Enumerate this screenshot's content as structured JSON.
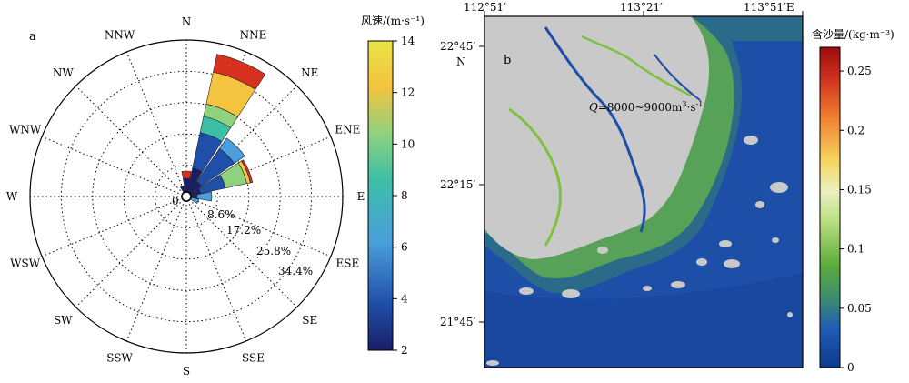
{
  "panel_a": {
    "label": "a",
    "center_label": "0",
    "directions": [
      "N",
      "NNE",
      "NE",
      "ENE",
      "E",
      "ESE",
      "SE",
      "SSE",
      "S",
      "SSW",
      "SW",
      "WSW",
      "W",
      "WNW",
      "NW",
      "NNW"
    ],
    "ring_labels": [
      "8.6%",
      "17.2%",
      "25.8%",
      "34.4%"
    ],
    "colorbar": {
      "title": "风速/(m·s⁻¹)",
      "ticks": [
        "14",
        "12",
        "10",
        "8",
        "6",
        "4",
        "2"
      ],
      "colors": [
        "#1a1e6a",
        "#1f4fa8",
        "#4a9fdc",
        "#3cbfa7",
        "#8fd27d",
        "#f4c340",
        "#e9e347"
      ]
    },
    "chart_data": {
      "type": "windrose",
      "ring_percent": [
        8.6,
        17.2,
        25.8,
        34.4
      ],
      "max_percent": 43.0,
      "speed_range_ms": [
        2,
        14
      ],
      "petals": [
        {
          "direction": "N",
          "segments": [
            {
              "upto_percent": 5.0,
              "color": "#1a1e6a"
            },
            {
              "upto_percent": 7.0,
              "color": "#d7301f"
            }
          ]
        },
        {
          "direction": "NNE",
          "segments": [
            {
              "upto_percent": 8.0,
              "color": "#1a1e6a"
            },
            {
              "upto_percent": 18.0,
              "color": "#1f4fa8"
            },
            {
              "upto_percent": 22.5,
              "color": "#3cbfa7"
            },
            {
              "upto_percent": 26.0,
              "color": "#8fd27d"
            },
            {
              "upto_percent": 35.0,
              "color": "#f4c340"
            },
            {
              "upto_percent": 40.0,
              "color": "#d7301f"
            }
          ]
        },
        {
          "direction": "NE",
          "segments": [
            {
              "upto_percent": 5.0,
              "color": "#1a1e6a"
            },
            {
              "upto_percent": 16.0,
              "color": "#1f4fa8"
            },
            {
              "upto_percent": 19.5,
              "color": "#4a9fdc"
            }
          ]
        },
        {
          "direction": "ENE",
          "segments": [
            {
              "upto_percent": 4.0,
              "color": "#1a1e6a"
            },
            {
              "upto_percent": 11.0,
              "color": "#1f4fa8"
            },
            {
              "upto_percent": 17.0,
              "color": "#8fd27d"
            },
            {
              "upto_percent": 18.0,
              "color": "#f4c340"
            },
            {
              "upto_percent": 18.6,
              "color": "#d7301f"
            }
          ]
        },
        {
          "direction": "E",
          "segments": [
            {
              "upto_percent": 3.0,
              "color": "#1a1e6a"
            },
            {
              "upto_percent": 7.0,
              "color": "#4a9fdc"
            }
          ]
        },
        {
          "direction": "ESE",
          "segments": [
            {
              "upto_percent": 3.5,
              "color": "#4a9fdc"
            }
          ]
        },
        {
          "direction": "NNW",
          "segments": [
            {
              "upto_percent": 3.0,
              "color": "#1a1e6a"
            }
          ]
        }
      ]
    }
  },
  "panel_b": {
    "label": "b",
    "top_ticks": [
      "112°51′",
      "113°21′",
      "113°51′E"
    ],
    "left_ticks": [
      "22°45′\nN",
      "22°15′",
      "21°45′"
    ],
    "left_tick_line1": "22°45′",
    "left_tick_line2": "N",
    "left_tick_mid": "22°15′",
    "left_tick_low": "21°45′",
    "annotation": "Q=8000~9000m³·s⁻¹",
    "annotation_q": "Q",
    "annotation_rest": "=8000~9000m",
    "annotation_sup": "3",
    "annotation_tail": "·s",
    "annotation_sup2": "-1",
    "colorbar": {
      "title": "含沙量/(kg·m⁻³)",
      "ticks": [
        "0.25",
        "0.2",
        "0.15",
        "0.1",
        "0.05",
        "0"
      ],
      "colors": [
        "#0b3b8c",
        "#1f5cb6",
        "#3d8f6b",
        "#8cc63f",
        "#d7e9a3",
        "#f6d35c",
        "#f08030",
        "#c8291c",
        "#9c0d0d"
      ]
    },
    "colors": {
      "sea": "#1d4fa8",
      "land": "#c9c9c9",
      "turbid": "#7dc23f"
    }
  }
}
